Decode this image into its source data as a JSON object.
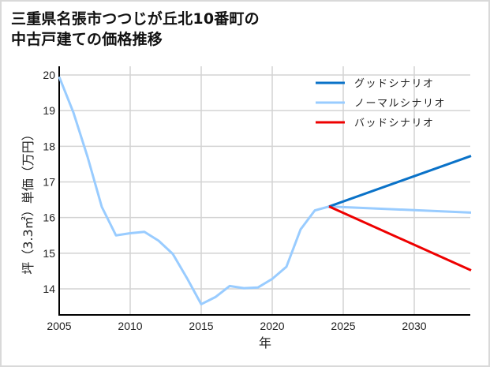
{
  "title": {
    "line1": "三重県名張市つつじが丘北10番町の",
    "line2": "中古戸建ての価格推移"
  },
  "colors": {
    "good": "#0a72c8",
    "normal": "#99ccff",
    "bad": "#ee0000",
    "grid": "#d3d3d3",
    "axis": "#000000"
  },
  "legend": [
    {
      "label": "グッドシナリオ",
      "color": "#0a72c8"
    },
    {
      "label": "ノーマルシナリオ",
      "color": "#99ccff"
    },
    {
      "label": "バッドシナリオ",
      "color": "#ee0000"
    }
  ],
  "chart_data": {
    "type": "line",
    "title": "三重県名張市つつじが丘北10番町の中古戸建ての価格推移",
    "xlabel": "年",
    "ylabel": "坪（3.3㎡）単価（万円）",
    "xlim": [
      2005,
      2034
    ],
    "ylim": [
      13.3,
      20.1
    ],
    "x_ticks": [
      2005,
      2010,
      2015,
      2020,
      2025,
      2030
    ],
    "y_ticks": [
      14,
      15,
      16,
      17,
      18,
      19,
      20
    ],
    "grid": true,
    "legend_position": "upper right",
    "series": [
      {
        "name": "ノーマルシナリオ",
        "color": "#99ccff",
        "x": [
          2005,
          2006,
          2007,
          2008,
          2009,
          2010,
          2011,
          2012,
          2013,
          2014,
          2015,
          2016,
          2017,
          2018,
          2019,
          2020,
          2021,
          2022,
          2023,
          2024,
          2034
        ],
        "values": [
          19.95,
          18.95,
          17.7,
          16.3,
          15.5,
          15.56,
          15.6,
          15.35,
          14.98,
          14.3,
          13.57,
          13.77,
          14.08,
          14.02,
          14.04,
          14.28,
          14.62,
          15.67,
          16.2,
          16.31,
          16.14
        ]
      },
      {
        "name": "グッドシナリオ",
        "color": "#0a72c8",
        "x": [
          2024,
          2034
        ],
        "values": [
          16.31,
          17.73
        ]
      },
      {
        "name": "バッドシナリオ",
        "color": "#ee0000",
        "x": [
          2024,
          2034
        ],
        "values": [
          16.31,
          14.52
        ]
      }
    ]
  }
}
